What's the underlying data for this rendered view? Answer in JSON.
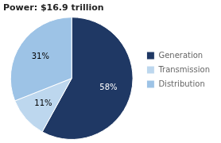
{
  "chart_data": {
    "type": "pie",
    "title": "Power: $16.9 trillion",
    "categories": [
      "Generation",
      "Transmission",
      "Distribution"
    ],
    "values": [
      58,
      11,
      31
    ],
    "value_labels": [
      "58%",
      "11%",
      "31%"
    ],
    "colors": [
      "#1f3864",
      "#bdd7ee",
      "#9dc3e6"
    ],
    "data_labels": true,
    "legend": "right"
  }
}
